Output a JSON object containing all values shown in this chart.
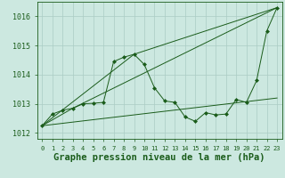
{
  "background_color": "#cce8e0",
  "grid_color": "#aaccc4",
  "line_color": "#1a5c1a",
  "marker_color": "#1a5c1a",
  "xlabel": "Graphe pression niveau de la mer (hPa)",
  "xlabel_fontsize": 7.5,
  "ylim": [
    1011.8,
    1016.5
  ],
  "xlim": [
    -0.5,
    23.5
  ],
  "yticks": [
    1012,
    1013,
    1014,
    1015,
    1016
  ],
  "xticks": [
    0,
    1,
    2,
    3,
    4,
    5,
    6,
    7,
    8,
    9,
    10,
    11,
    12,
    13,
    14,
    15,
    16,
    17,
    18,
    19,
    20,
    21,
    22,
    23
  ],
  "series": [
    {
      "x": [
        0,
        1,
        2,
        3,
        4,
        5,
        6,
        7,
        8,
        9,
        10,
        11,
        12,
        13,
        14,
        15,
        16,
        17,
        18,
        19,
        20,
        21,
        22,
        23
      ],
      "y": [
        1012.25,
        1012.65,
        1012.78,
        1012.85,
        1013.0,
        1013.02,
        1013.05,
        1014.45,
        1014.6,
        1014.7,
        1014.35,
        1013.55,
        1013.1,
        1013.05,
        1012.55,
        1012.4,
        1012.7,
        1012.62,
        1012.65,
        1013.15,
        1013.05,
        1013.8,
        1015.5,
        1016.3
      ]
    },
    {
      "x": [
        0,
        9,
        23
      ],
      "y": [
        1012.25,
        1014.7,
        1016.3
      ]
    },
    {
      "x": [
        0,
        3,
        23
      ],
      "y": [
        1012.25,
        1012.85,
        1016.3
      ]
    },
    {
      "x": [
        0,
        23
      ],
      "y": [
        1012.25,
        1013.2
      ]
    }
  ]
}
